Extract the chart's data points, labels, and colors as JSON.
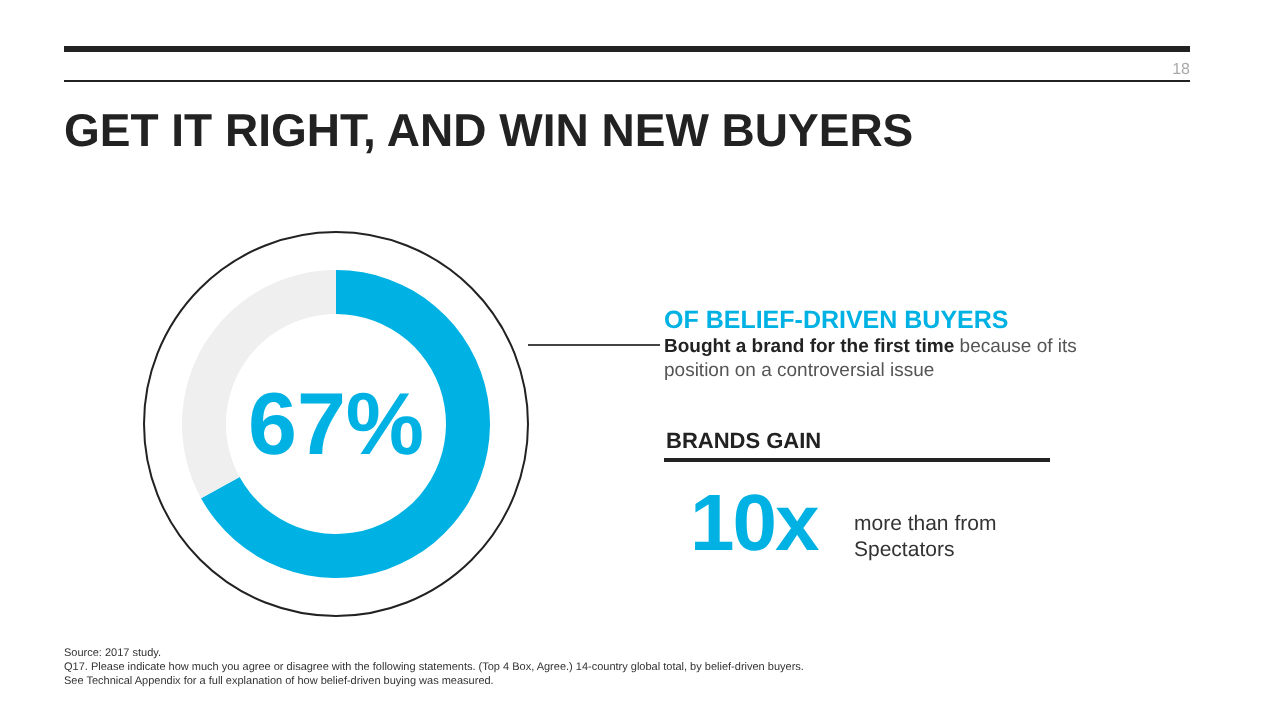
{
  "chart_data": {
    "type": "donut",
    "title": "GET IT RIGHT, AND WIN NEW BUYERS",
    "categories": [
      null,
      null
    ],
    "values": [
      67,
      33
    ],
    "colors": [
      "#00b2e3",
      "#efefef"
    ],
    "value_labels": [
      "67%",
      null
    ],
    "annotations": [
      "18",
      "OF BELIEF-DRIVEN BUYERS",
      "Bought a brand for the first time",
      "because of its position on a controversial issue",
      "BRANDS GAIN",
      "10x",
      "more than from Spectators",
      "Source: 2017 study.",
      "Q17. Please indicate how much you agree or disagree with the following statements. (Top 4 Box, Agree.) 14-country global total, by belief-driven buyers.",
      "See Technical Appendix for a full explanation of how belief-driven buying was measured."
    ]
  }
}
